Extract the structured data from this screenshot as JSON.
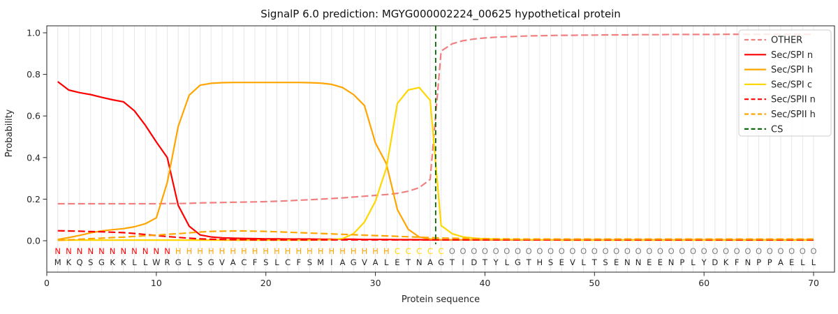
{
  "chart_data": {
    "type": "line",
    "title": "SignalP 6.0 prediction: MGYG000002224_00625 hypothetical protein",
    "xlabel": "Protein sequence",
    "ylabel": "Probability",
    "x_start": 1,
    "xticks": [
      0,
      10,
      20,
      30,
      40,
      50,
      60,
      70
    ],
    "ytick_labels": [
      "0.0",
      "0.2",
      "0.4",
      "0.6",
      "0.8",
      "1.0"
    ],
    "yticks": [
      0.0,
      0.2,
      0.4,
      0.6,
      0.8,
      1.0
    ],
    "xlim": [
      0,
      72
    ],
    "grid": "vertical line per residue",
    "grid_color": "#e6e6e6",
    "axis_color": "#262626",
    "legend_position": "upper right",
    "series": [
      {
        "name": "OTHER",
        "color": "#f08080",
        "dash": true,
        "values": [
          0.178,
          0.178,
          0.178,
          0.178,
          0.178,
          0.178,
          0.178,
          0.178,
          0.178,
          0.178,
          0.179,
          0.179,
          0.18,
          0.182,
          0.183,
          0.184,
          0.185,
          0.186,
          0.187,
          0.188,
          0.19,
          0.192,
          0.195,
          0.197,
          0.2,
          0.203,
          0.206,
          0.21,
          0.214,
          0.218,
          0.222,
          0.228,
          0.238,
          0.255,
          0.295,
          0.912,
          0.947,
          0.962,
          0.97,
          0.975,
          0.979,
          0.981,
          0.983,
          0.985,
          0.986,
          0.987,
          0.988,
          0.988,
          0.989,
          0.989,
          0.99,
          0.99,
          0.99,
          0.991,
          0.991,
          0.991,
          0.992,
          0.992,
          0.992,
          0.992,
          0.992,
          0.993,
          0.993,
          0.993,
          0.993,
          0.993,
          0.993,
          0.993,
          0.993,
          0.993
        ]
      },
      {
        "name": "Sec/SPI n",
        "color": "#ff0000",
        "dash": false,
        "values": [
          0.765,
          0.725,
          0.712,
          0.703,
          0.69,
          0.678,
          0.668,
          0.625,
          0.555,
          0.475,
          0.4,
          0.17,
          0.07,
          0.028,
          0.018,
          0.014,
          0.012,
          0.011,
          0.01,
          0.009,
          0.009,
          0.008,
          0.008,
          0.008,
          0.007,
          0.007,
          0.007,
          0.007,
          0.006,
          0.006,
          0.006,
          0.005,
          0.005,
          0.005,
          0.004,
          0.004,
          0.004,
          0.004,
          0.004,
          0.004,
          0.004,
          0.004,
          0.004,
          0.004,
          0.004,
          0.004,
          0.004,
          0.004,
          0.004,
          0.004,
          0.004,
          0.004,
          0.004,
          0.004,
          0.004,
          0.004,
          0.004,
          0.004,
          0.004,
          0.004,
          0.004,
          0.004,
          0.004,
          0.004,
          0.004,
          0.004,
          0.004,
          0.004,
          0.004,
          0.004
        ]
      },
      {
        "name": "Sec/SPI h",
        "color": "#ffa500",
        "dash": false,
        "values": [
          0.006,
          0.015,
          0.026,
          0.038,
          0.047,
          0.053,
          0.058,
          0.067,
          0.082,
          0.11,
          0.28,
          0.55,
          0.7,
          0.748,
          0.757,
          0.76,
          0.761,
          0.761,
          0.761,
          0.761,
          0.761,
          0.761,
          0.761,
          0.76,
          0.758,
          0.752,
          0.737,
          0.703,
          0.65,
          0.47,
          0.37,
          0.15,
          0.055,
          0.018,
          0.008,
          0.005,
          0.004,
          0.004,
          0.004,
          0.004,
          0.004,
          0.004,
          0.004,
          0.004,
          0.004,
          0.004,
          0.004,
          0.004,
          0.004,
          0.004,
          0.004,
          0.004,
          0.004,
          0.004,
          0.004,
          0.004,
          0.004,
          0.004,
          0.004,
          0.004,
          0.004,
          0.004,
          0.004,
          0.004,
          0.004,
          0.004,
          0.004,
          0.004,
          0.004,
          0.004
        ]
      },
      {
        "name": "Sec/SPI c",
        "color": "#ffd700",
        "dash": false,
        "values": [
          0.003,
          0.003,
          0.003,
          0.003,
          0.003,
          0.003,
          0.003,
          0.003,
          0.003,
          0.003,
          0.003,
          0.003,
          0.003,
          0.003,
          0.003,
          0.003,
          0.003,
          0.003,
          0.003,
          0.003,
          0.003,
          0.003,
          0.003,
          0.003,
          0.004,
          0.005,
          0.01,
          0.034,
          0.09,
          0.19,
          0.35,
          0.66,
          0.725,
          0.737,
          0.675,
          0.073,
          0.034,
          0.018,
          0.012,
          0.009,
          0.007,
          0.006,
          0.005,
          0.005,
          0.004,
          0.004,
          0.003,
          0.003,
          0.003,
          0.003,
          0.003,
          0.003,
          0.003,
          0.003,
          0.003,
          0.003,
          0.003,
          0.003,
          0.003,
          0.003,
          0.003,
          0.003,
          0.003,
          0.003,
          0.003,
          0.003,
          0.003,
          0.003,
          0.003,
          0.003
        ]
      },
      {
        "name": "Sec/SPII n",
        "color": "#ff0000",
        "dash": true,
        "values": [
          0.048,
          0.047,
          0.046,
          0.044,
          0.043,
          0.041,
          0.039,
          0.035,
          0.03,
          0.025,
          0.02,
          0.016,
          0.012,
          0.009,
          0.007,
          0.006,
          0.005,
          0.005,
          0.004,
          0.004,
          0.004,
          0.004,
          0.004,
          0.004,
          0.004,
          0.004,
          0.004,
          0.004,
          0.004,
          0.004,
          0.004,
          0.004,
          0.004,
          0.004,
          0.004,
          0.004,
          0.004,
          0.004,
          0.004,
          0.004,
          0.004,
          0.004,
          0.004,
          0.004,
          0.004,
          0.004,
          0.004,
          0.004,
          0.004,
          0.004,
          0.004,
          0.004,
          0.004,
          0.004,
          0.004,
          0.004,
          0.004,
          0.004,
          0.004,
          0.004,
          0.004,
          0.004,
          0.004,
          0.004,
          0.004,
          0.004,
          0.004,
          0.004,
          0.004,
          0.004
        ]
      },
      {
        "name": "Sec/SPII h",
        "color": "#ffa500",
        "dash": true,
        "values": [
          0.002,
          0.004,
          0.007,
          0.01,
          0.012,
          0.015,
          0.017,
          0.021,
          0.024,
          0.027,
          0.031,
          0.034,
          0.038,
          0.042,
          0.045,
          0.046,
          0.047,
          0.047,
          0.046,
          0.045,
          0.043,
          0.041,
          0.039,
          0.037,
          0.035,
          0.033,
          0.031,
          0.029,
          0.027,
          0.025,
          0.023,
          0.021,
          0.019,
          0.017,
          0.015,
          0.013,
          0.012,
          0.011,
          0.01,
          0.01,
          0.009,
          0.009,
          0.008,
          0.008,
          0.008,
          0.008,
          0.008,
          0.008,
          0.008,
          0.008,
          0.008,
          0.008,
          0.008,
          0.008,
          0.008,
          0.008,
          0.008,
          0.008,
          0.008,
          0.008,
          0.008,
          0.008,
          0.008,
          0.008,
          0.008,
          0.008,
          0.008,
          0.008,
          0.008,
          0.008
        ]
      }
    ],
    "cs_marker": {
      "name": "CS",
      "position": 35.5,
      "color": "#006400",
      "dash": true
    },
    "sequence": "MKQSGKKLLWRGLSGVACFSLCFSMIAGVALETNAGTIDTYLGTHSEVLTSENNEENPLYDKFNPPAELL",
    "regions": "NNNNNNNNNNNHHHHHHHHHHHHHHHHHHHHCCCCCOOOOOOOOOOOOOOOOOOOOOOOOOOOOOOOOOO",
    "region_colors": {
      "N": "#ff0000",
      "H": "#ffa500",
      "C": "#ffd700",
      "O": "#7f7f7f"
    },
    "sequence_color": "#262626",
    "legend_entries": [
      "OTHER",
      "Sec/SPI n",
      "Sec/SPI h",
      "Sec/SPI c",
      "Sec/SPII n",
      "Sec/SPII h",
      "CS"
    ]
  }
}
